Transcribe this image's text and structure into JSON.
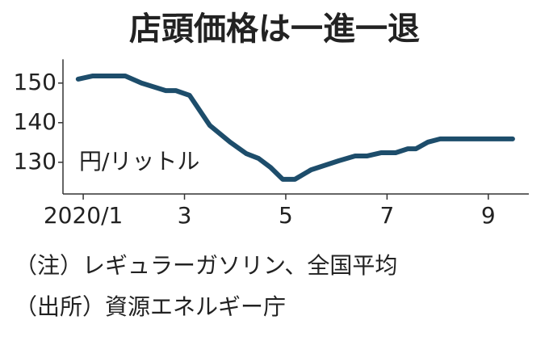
{
  "chart_data": {
    "type": "line",
    "title": "店頭価格は一進一退",
    "unit_label": "円/リットル",
    "notes": [
      "（注）レギュラーガソリン、全国平均",
      "（出所）資源エネルギー庁"
    ],
    "color": "#1d4d6b",
    "x": [
      0.9,
      1.19,
      1.83,
      2.15,
      2.63,
      2.83,
      3.1,
      3.5,
      3.9,
      4.22,
      4.46,
      4.7,
      4.94,
      5.18,
      5.5,
      6.05,
      6.37,
      6.61,
      6.88,
      7.17,
      7.41,
      7.57,
      7.81,
      8.05,
      9.48
    ],
    "values": [
      151,
      151.8,
      151.8,
      150,
      148.1,
      148.1,
      146.9,
      139.3,
      135.1,
      132.2,
      131,
      128.7,
      125.7,
      125.7,
      128.1,
      130.4,
      131.6,
      131.6,
      132.4,
      132.4,
      133.4,
      133.4,
      135.1,
      135.9,
      135.9
    ],
    "xlim": [
      0.6,
      9.8
    ],
    "xticks": [
      {
        "value": 1,
        "label": "2020/1"
      },
      3,
      5,
      7,
      9
    ],
    "ylim": [
      122,
      156
    ],
    "yticks": [
      130,
      140,
      150
    ],
    "grid": false
  }
}
